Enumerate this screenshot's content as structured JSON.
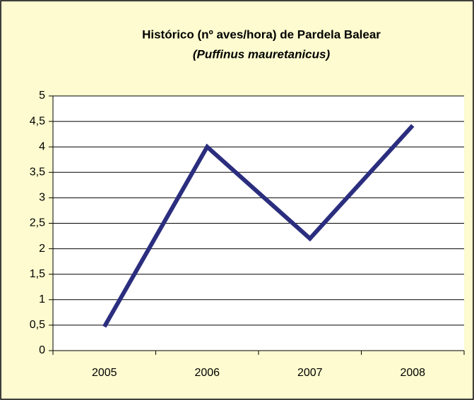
{
  "chart_data": {
    "type": "line",
    "title": "Histórico (nº aves/hora) de Pardela Balear",
    "subtitle": "(Puffinus mauretanicus)",
    "categories": [
      "2005",
      "2006",
      "2007",
      "2008"
    ],
    "series": [
      {
        "name": "Pardela Balear",
        "color": "#2b2e7e",
        "values": [
          0.47,
          4.0,
          2.2,
          4.42
        ]
      }
    ],
    "ylim": [
      0,
      5
    ],
    "yticks": [
      0,
      {
        "value": 0.5,
        "label": "0,5"
      },
      1,
      {
        "value": 1.5,
        "label": "1,5"
      },
      2,
      {
        "value": 2.5,
        "label": "2,5"
      },
      3,
      {
        "value": 3.5,
        "label": "3,5"
      },
      4,
      {
        "value": 4.5,
        "label": "4,5"
      },
      5
    ],
    "grid": true
  }
}
